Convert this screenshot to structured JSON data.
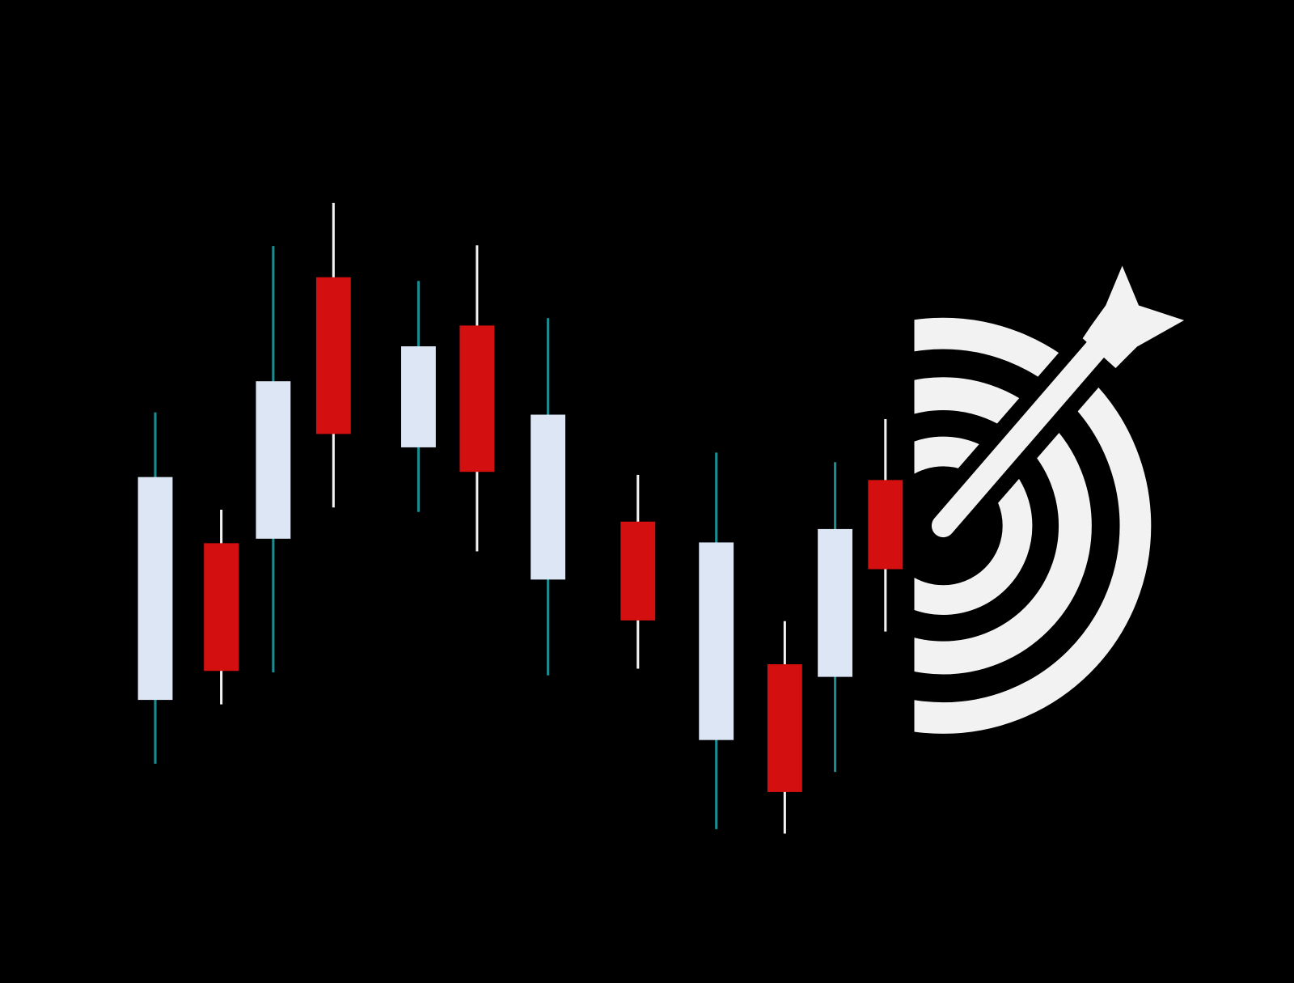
{
  "chart_data": {
    "type": "candlestick",
    "categories": [
      null,
      null,
      null,
      null,
      null,
      null,
      null,
      null,
      null,
      null,
      null,
      null
    ],
    "open": [
      28.0,
      49.1,
      49.7,
      84.9,
      62.0,
      78.4,
      44.2,
      52.0,
      22.6,
      32.8,
      31.1,
      57.6
    ],
    "high": [
      66.7,
      53.6,
      89.1,
      94.9,
      84.4,
      89.2,
      79.4,
      58.3,
      61.3,
      38.6,
      60.0,
      65.8
    ],
    "low": [
      19.4,
      27.4,
      31.7,
      53.9,
      53.3,
      48.0,
      31.3,
      32.2,
      10.6,
      10.0,
      18.3,
      37.2
    ],
    "close": [
      58.0,
      31.9,
      70.9,
      63.8,
      75.6,
      58.7,
      66.4,
      38.7,
      49.2,
      15.6,
      51.0,
      45.6
    ],
    "ylim": [
      0,
      100
    ],
    "up_color": "#dce6f5",
    "down_color": "#d40f0f",
    "up_wick_color": "#1b8c92",
    "down_wick_color": "#f2f2f2"
  }
}
